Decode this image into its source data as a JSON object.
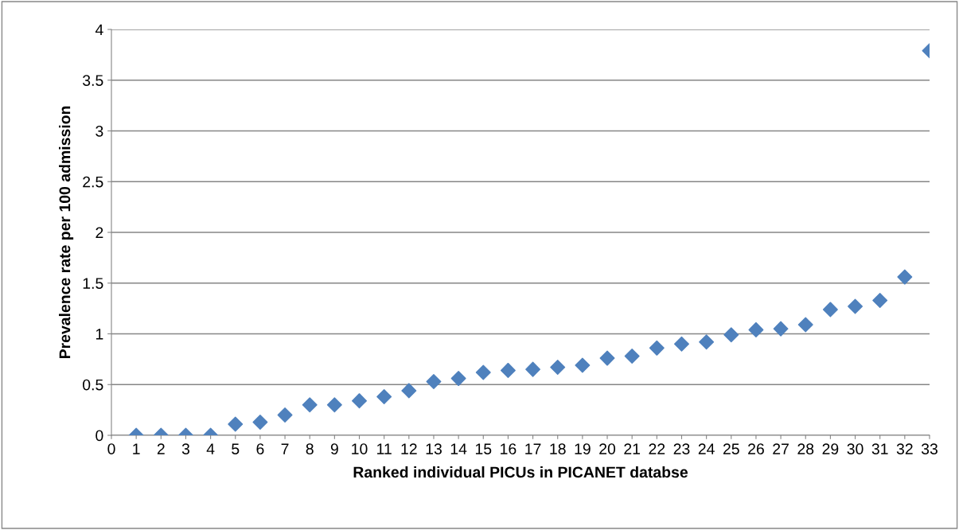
{
  "chart_data": {
    "type": "scatter",
    "xlabel": "Ranked individual PICUs in PICANET databse",
    "ylabel": "Prevalence rate per 100 admission",
    "x": [
      1,
      2,
      3,
      4,
      5,
      6,
      7,
      8,
      9,
      10,
      11,
      12,
      13,
      14,
      15,
      16,
      17,
      18,
      19,
      20,
      21,
      22,
      23,
      24,
      25,
      26,
      27,
      28,
      29,
      30,
      31,
      32,
      33
    ],
    "series": [
      {
        "color": "#4f81bd",
        "values": [
          0,
          0,
          0,
          0,
          0.11,
          0.13,
          0.2,
          0.3,
          0.3,
          0.34,
          0.38,
          0.44,
          0.53,
          0.56,
          0.62,
          0.64,
          0.65,
          0.67,
          0.69,
          0.76,
          0.78,
          0.86,
          0.9,
          0.92,
          0.99,
          1.04,
          1.05,
          1.09,
          1.24,
          1.27,
          1.33,
          1.56,
          3.79
        ]
      }
    ],
    "xlim": [
      0,
      33
    ],
    "xticks": [
      0,
      1,
      2,
      3,
      4,
      5,
      6,
      7,
      8,
      9,
      10,
      11,
      12,
      13,
      14,
      15,
      16,
      17,
      18,
      19,
      20,
      21,
      22,
      23,
      24,
      25,
      26,
      27,
      28,
      29,
      30,
      31,
      32,
      33
    ],
    "ylim": [
      0,
      4
    ],
    "yticks": [
      0,
      0.5,
      1,
      1.5,
      2,
      2.5,
      3,
      3.5,
      4
    ],
    "grid": "y",
    "marker": "diamond",
    "legend": false
  }
}
